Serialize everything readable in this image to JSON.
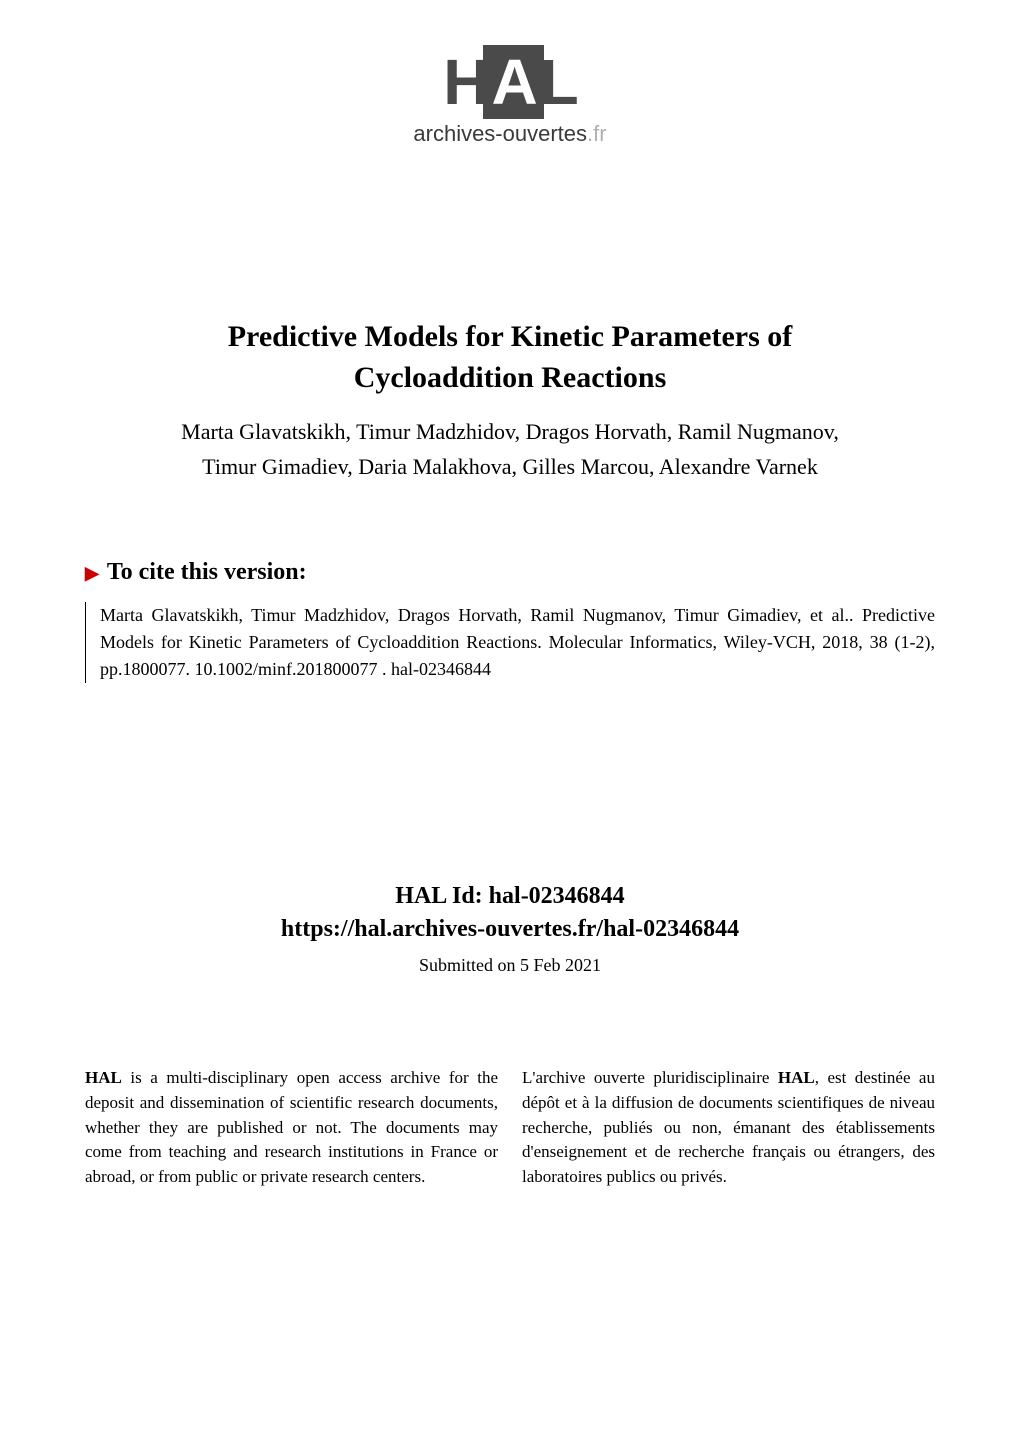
{
  "logo": {
    "text_h": "H",
    "text_a": "A",
    "text_l": "L",
    "subtitle_main": "archives-ouvertes",
    "subtitle_suffix": ".fr"
  },
  "title": {
    "line1": "Predictive Models for Kinetic Parameters of",
    "line2": "Cycloaddition Reactions"
  },
  "authors": {
    "line1": "Marta Glavatskikh, Timur Madzhidov, Dragos Horvath, Ramil Nugmanov,",
    "line2": "Timur Gimadiev, Daria Malakhova, Gilles Marcou, Alexandre Varnek"
  },
  "cite": {
    "header": "To cite this version:",
    "body_authors": "Marta Glavatskikh, Timur Madzhidov, Dragos Horvath, Ramil Nugmanov, Timur Gimadiev, et al..",
    "body_title": "Predictive Models for Kinetic Parameters of Cycloaddition Reactions. Molecular Informatics, Wiley-VCH, 2018, 38 (1-2), pp.1800077. ",
    "doi": "10.1002/minf.201800077",
    "separator": " . ",
    "hal_id": "hal-02346844"
  },
  "hal_section": {
    "id_label": "HAL Id: ",
    "id_value": "hal-02346844",
    "url": "https://hal.archives-ouvertes.fr/hal-02346844",
    "submitted": "Submitted on 5 Feb 2021"
  },
  "description": {
    "left_bold": "HAL",
    "left_text": " is a multi-disciplinary open access archive for the deposit and dissemination of scientific research documents, whether they are published or not. The documents may come from teaching and research institutions in France or abroad, or from public or private research centers.",
    "right_prefix": "L'archive ouverte pluridisciplinaire ",
    "right_bold": "HAL",
    "right_text": ", est destinée au dépôt et à la diffusion de documents scientifiques de niveau recherche, publiés ou non, émanant des établissements d'enseignement et de recherche français ou étrangers, des laboratoires publics ou privés."
  },
  "colors": {
    "background": "#ffffff",
    "text": "#000000",
    "marker": "#cc0000",
    "logo_gray": "#4a4a4a",
    "logo_faded": "#b0b0b0"
  }
}
